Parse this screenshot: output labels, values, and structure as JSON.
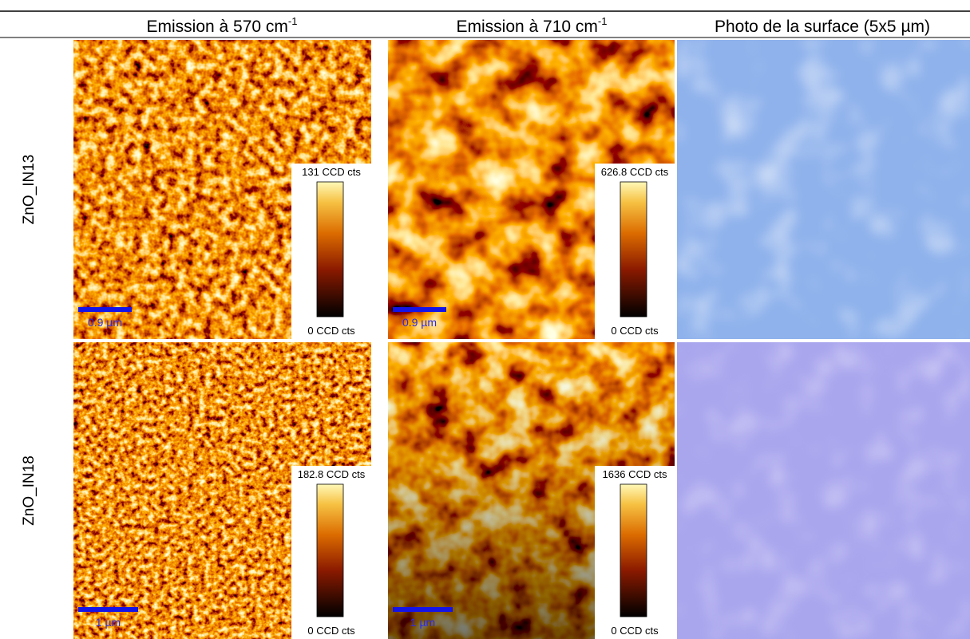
{
  "header": {
    "columns": [
      {
        "text": "Emission à 570 cm",
        "sup": "-1"
      },
      {
        "text": "Emission à 710 cm",
        "sup": "-1"
      },
      {
        "text": "Photo de la surface (5x5 µm)"
      }
    ]
  },
  "rows": [
    {
      "label": "ZnO_IN13",
      "maps": [
        {
          "max": "131 CCD cts",
          "min": "0 CCD cts",
          "scale": "0.9 µm"
        },
        {
          "max": "626.8 CCD cts",
          "min": "0 CCD cts",
          "scale": "0.9 µm"
        }
      ]
    },
    {
      "label": "ZnO_IN18",
      "maps": [
        {
          "max": "182.8 CCD cts",
          "min": "0 CCD cts",
          "scale": "1 µm"
        },
        {
          "max": "1636 CCD cts",
          "min": "0 CCD cts",
          "scale": "1 µm"
        }
      ]
    }
  ]
}
